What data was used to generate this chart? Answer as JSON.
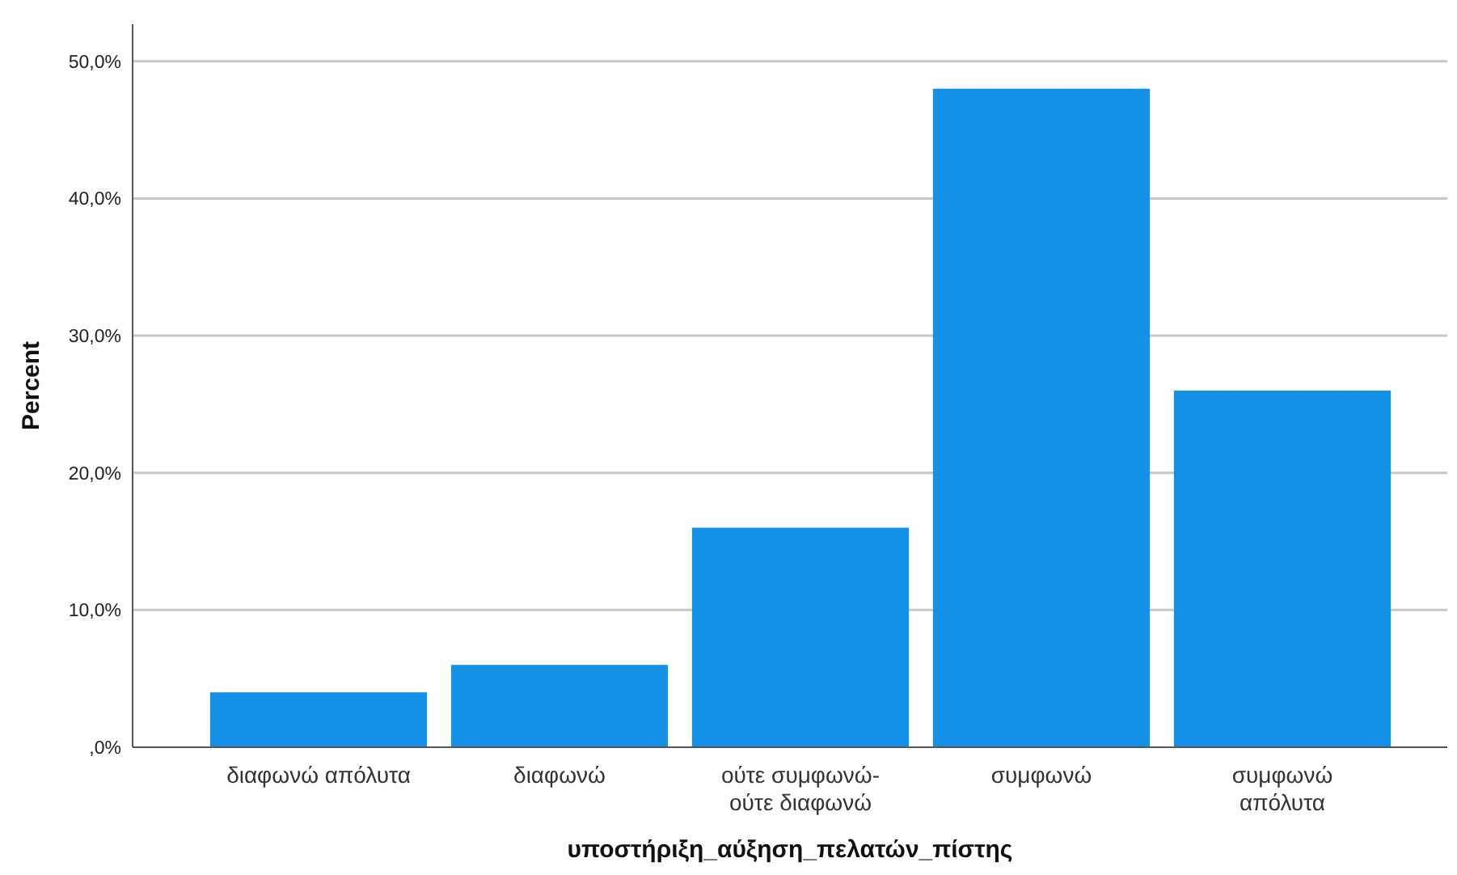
{
  "chart_data": {
    "type": "bar",
    "xlabel": "υποστήριξη_αύξηση_πελατών_πίστης",
    "ylabel": "Percent",
    "categories": [
      "διαφωνώ απόλυτα",
      "διαφωνώ",
      "ούτε συμφωνώ-\nούτε διαφωνώ",
      "συμφωνώ",
      "συμφωνώ\nαπόλυτα"
    ],
    "values": [
      4,
      6,
      16,
      48,
      26
    ],
    "color": "#1491e6",
    "ylim": [
      0,
      52.7
    ],
    "yticks": [
      {
        "value": 0,
        "label": ",0%"
      },
      {
        "value": 10,
        "label": "10,0%"
      },
      {
        "value": 20,
        "label": "20,0%"
      },
      {
        "value": 30,
        "label": "30,0%"
      },
      {
        "value": 40,
        "label": "40,0%"
      },
      {
        "value": 50,
        "label": "50,0%"
      }
    ],
    "grid": "y"
  }
}
